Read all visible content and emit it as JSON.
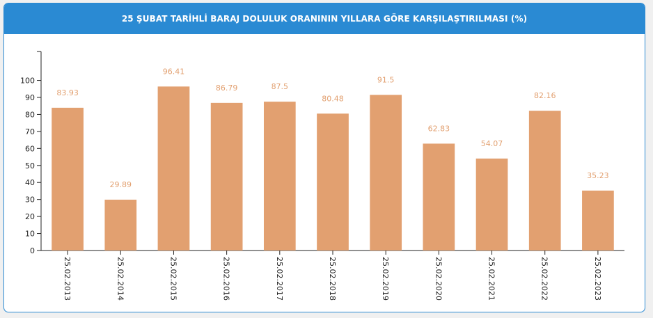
{
  "header": {
    "title": "25 ŞUBAT TARİHLİ BARAJ DOLULUK ORANININ YILLARA GÖRE KARŞILAŞTIRILMASI (%)"
  },
  "colors": {
    "header_bg": "#2a8ad3",
    "bar": "#e2a070",
    "data_label": "#e2a070",
    "axis": "#222222"
  },
  "chart_data": {
    "type": "bar",
    "categories": [
      "25.02.2013",
      "25.02.2014",
      "25.02.2015",
      "25.02.2016",
      "25.02.2017",
      "25.02.2018",
      "25.02.2019",
      "25.02.2020",
      "25.02.2021",
      "25.02.2022",
      "25.02.2023"
    ],
    "values": [
      83.93,
      29.89,
      96.41,
      86.79,
      87.5,
      80.48,
      91.5,
      62.83,
      54.07,
      82.16,
      35.23
    ],
    "data_labels": [
      "83.93",
      "29.89",
      "96.41",
      "86.79",
      "87.5",
      "80.48",
      "91.5",
      "62.83",
      "54.07",
      "82.16",
      "35.23"
    ],
    "y_ticks": [
      0,
      10,
      20,
      30,
      40,
      50,
      60,
      70,
      80,
      90,
      100
    ],
    "y_tick_labels": [
      "0",
      "10",
      "20",
      "30",
      "40",
      "50",
      "60",
      "70",
      "80",
      "90",
      "100"
    ],
    "ylim": [
      0,
      117
    ],
    "grid": false,
    "legend": "none"
  }
}
